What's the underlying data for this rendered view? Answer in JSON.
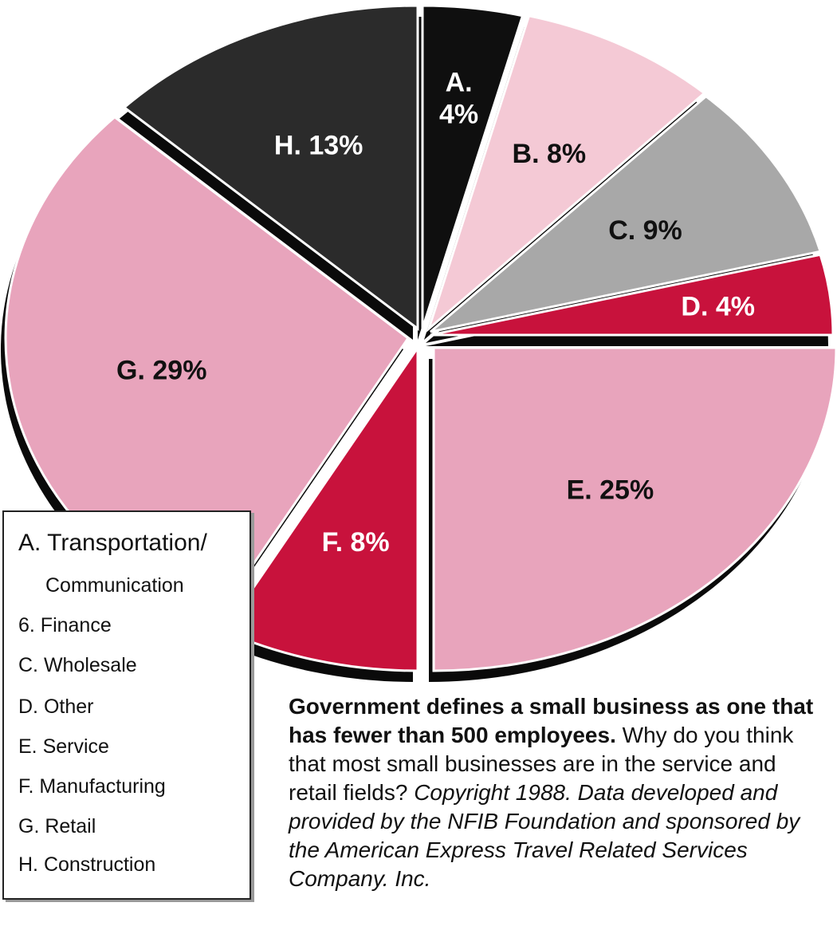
{
  "chart_data": {
    "type": "pie",
    "title": "",
    "slices": [
      {
        "key": "A",
        "label": "A.\n4%",
        "value": 4,
        "color": "#0f0f0f",
        "text_color": "#ffffff",
        "name": "Transportation/Communication"
      },
      {
        "key": "B",
        "label": "B. 8%",
        "value": 8,
        "color": "#f4c9d5",
        "text_color": "#111111",
        "name": "Finance"
      },
      {
        "key": "C",
        "label": "C. 9%",
        "value": 9,
        "color": "#a8a8a8",
        "text_color": "#111111",
        "name": "Wholesale"
      },
      {
        "key": "D",
        "label": "D. 4%",
        "value": 4,
        "color": "#c8123c",
        "text_color": "#ffffff",
        "name": "Other"
      },
      {
        "key": "E",
        "label": "E. 25%",
        "value": 25,
        "color": "#e8a4bc",
        "text_color": "#111111",
        "name": "Service"
      },
      {
        "key": "F",
        "label": "F. 8%",
        "value": 8,
        "color": "#c8123c",
        "text_color": "#ffffff",
        "name": "Manufacturing"
      },
      {
        "key": "G",
        "label": "G. 29%",
        "value": 29,
        "color": "#e8a4bc",
        "text_color": "#111111",
        "name": "Retail"
      },
      {
        "key": "H",
        "label": "H. 13%",
        "value": 13,
        "color": "#2b2b2b",
        "text_color": "#ffffff",
        "name": "Construction"
      }
    ]
  },
  "legend": {
    "items": [
      "A. Transportation/",
      "Communication",
      "6.  Finance",
      "C. Wholesale",
      "D. Other",
      "E. Service",
      "F. Manufacturing",
      "G.  Retail",
      "H.  Construction"
    ]
  },
  "caption": {
    "bold": "Government defines a small business as one that has fewer than 500 employees.",
    "normal": " Why do you think that most small businesses are in the service and retail fields? ",
    "italic": "Copyright 1988. Data developed and provided by the NFIB Foundation and sponsored by the American Express Travel Related Services Company. Inc."
  }
}
